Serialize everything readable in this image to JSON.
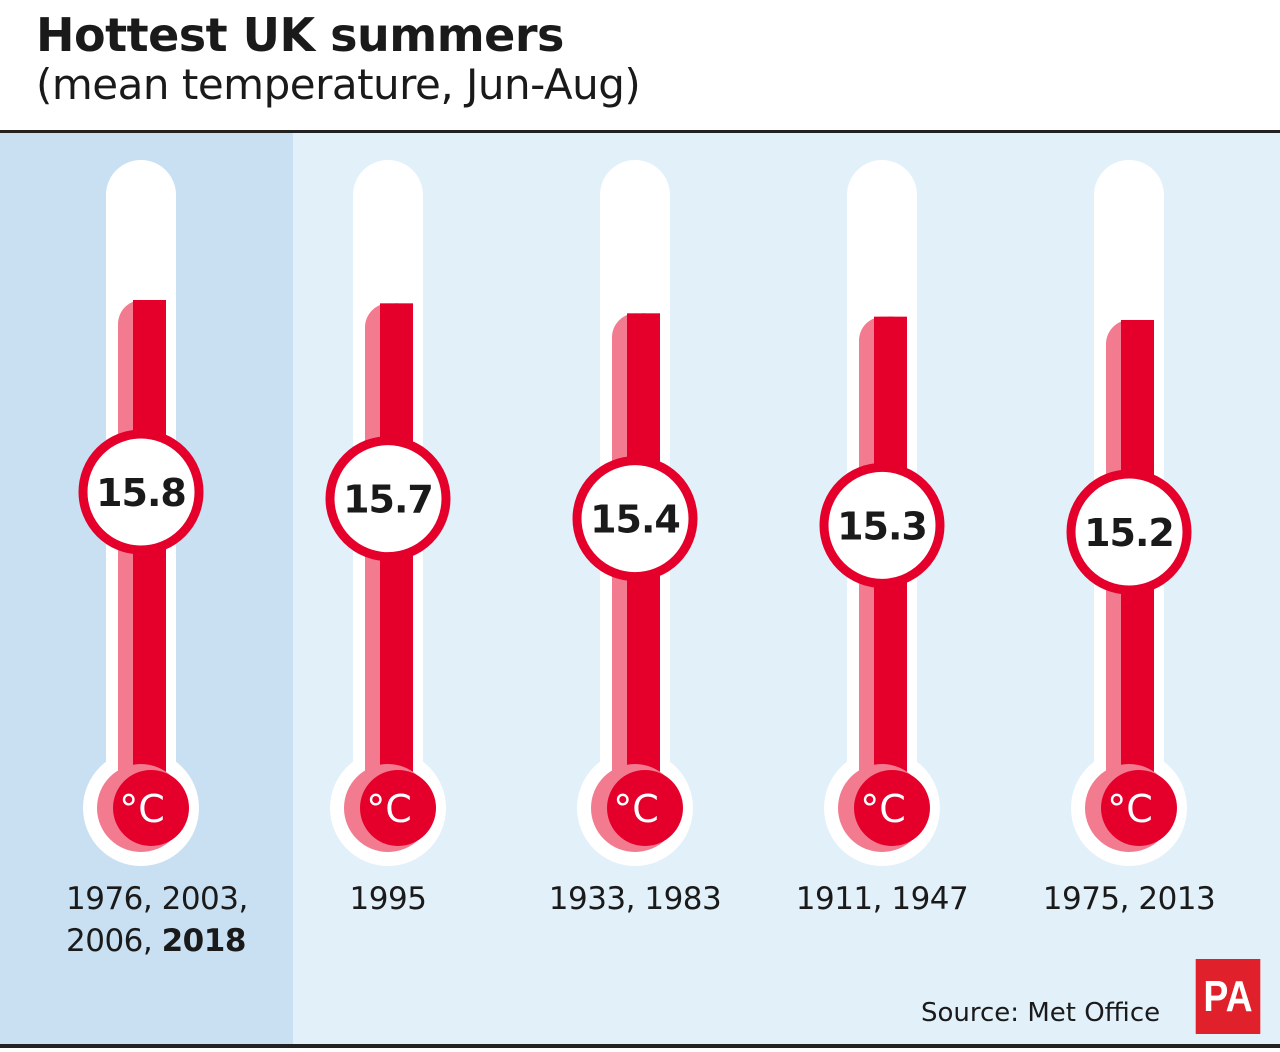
{
  "chart_data": {
    "type": "bar",
    "title": "Hottest UK summers",
    "subtitle": "(mean temperature, Jun-Aug)",
    "unit": "°C",
    "categories": [
      "1976, 2003, 2006, 2018",
      "1995",
      "1933, 1983",
      "1911, 1947",
      "1975, 2013"
    ],
    "category_lines": [
      [
        "1976, 2003,",
        "2006, "
      ],
      [
        "1995"
      ],
      [
        "1933, 1983"
      ],
      [
        "1911, 1947"
      ],
      [
        "1975, 2013"
      ]
    ],
    "bold_suffix": [
      "2018",
      "",
      "",
      "",
      ""
    ],
    "values": [
      15.8,
      15.7,
      15.4,
      15.3,
      15.2
    ],
    "value_labels": [
      "15.8",
      "15.7",
      "15.4",
      "15.3",
      "15.2"
    ],
    "highlighted_category": 0,
    "source": "Source: Met Office",
    "colors": {
      "mercury": "#e4002b",
      "mercury_light": "#f27b8f",
      "tube": "#ffffff",
      "background": "#e2f0f9",
      "highlight": "#c8e0f2",
      "logo": "#e0202a"
    }
  },
  "logo": "PA"
}
